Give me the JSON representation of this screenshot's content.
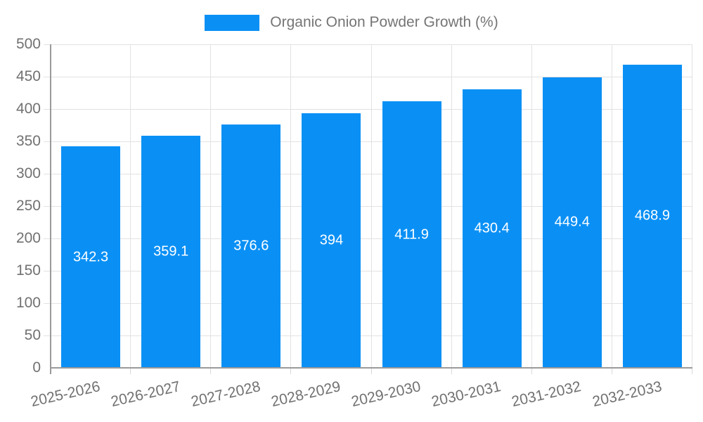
{
  "legend": {
    "label": "Organic Onion Powder Growth (%)"
  },
  "chart_data": {
    "type": "bar",
    "title": "Organic Onion Powder Growth (%)",
    "series_name": "Organic Onion Powder Growth (%)",
    "categories": [
      "2025-2026",
      "2026-2027",
      "2027-2028",
      "2028-2029",
      "2029-2030",
      "2030-2031",
      "2031-2032",
      "2032-2033"
    ],
    "values": [
      342.3,
      359.1,
      376.6,
      394,
      411.9,
      430.4,
      449.4,
      468.9
    ],
    "value_labels": [
      "342.3",
      "359.1",
      "376.6",
      "394",
      "411.9",
      "430.4",
      "449.4",
      "468.9"
    ],
    "xlabel": "",
    "ylabel": "",
    "ylim": [
      0,
      500
    ],
    "yticks": [
      0,
      50,
      100,
      150,
      200,
      250,
      300,
      350,
      400,
      450,
      500
    ],
    "grid": true,
    "legend_position": "top-center",
    "value_label_position": "inside-center"
  },
  "colors": {
    "bar": "#0a90f5",
    "grid": "#e2e2e2",
    "axis": "#9a9a9a",
    "tick": "#d9d9d9",
    "tick_label": "#717171",
    "bar_label": "#ffffff",
    "legend_text": "#757575",
    "background": "#ffffff"
  }
}
